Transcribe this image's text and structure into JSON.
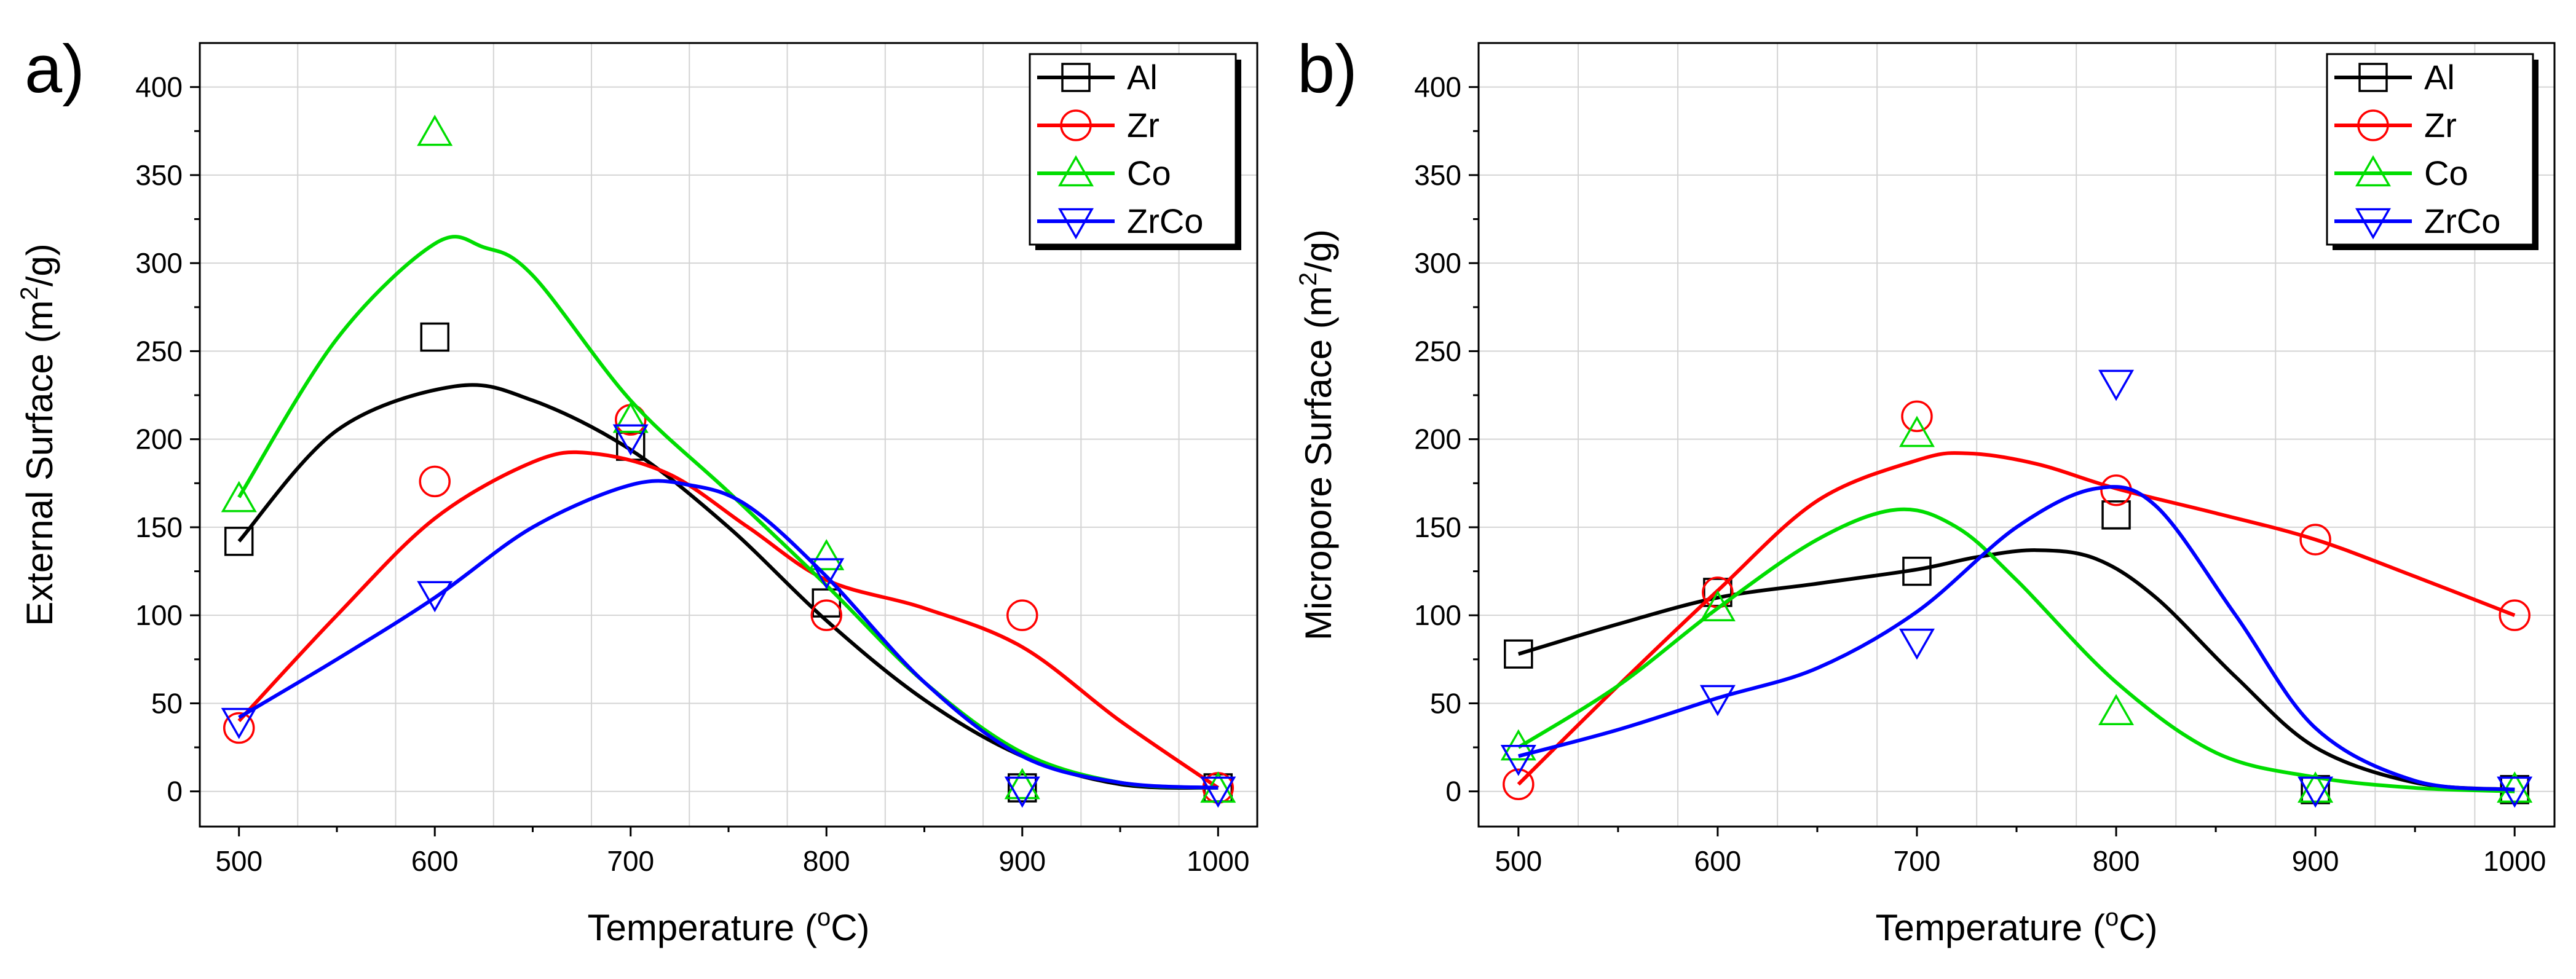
{
  "chart_data": [
    {
      "type": "line",
      "panel_label": "a)",
      "title": "",
      "xlabel_parts": {
        "main": "Temperature (",
        "superscript": "o",
        "end": "C)"
      },
      "ylabel_parts": {
        "main": "External Surface (m",
        "superscript": "2",
        "end": "/g)"
      },
      "xlim": [
        480,
        1020
      ],
      "ylim": [
        -20,
        425
      ],
      "x_ticks": [
        500,
        600,
        700,
        800,
        900,
        1000
      ],
      "y_ticks": [
        0,
        50,
        100,
        150,
        200,
        250,
        300,
        350,
        400
      ],
      "grid": true,
      "legend_position": "top-right",
      "series": [
        {
          "name": "Al",
          "color": "#000000",
          "marker": "square",
          "points": [
            [
              500,
              142
            ],
            [
              600,
              258
            ],
            [
              700,
              196
            ],
            [
              800,
              107
            ],
            [
              900,
              2
            ],
            [
              1000,
              2
            ]
          ],
          "curve": [
            [
              500,
              142
            ],
            [
              550,
              205
            ],
            [
              610,
              230
            ],
            [
              650,
              222
            ],
            [
              700,
              194
            ],
            [
              750,
              150
            ],
            [
              800,
              97
            ],
            [
              850,
              52
            ],
            [
              900,
              20
            ],
            [
              950,
              4
            ],
            [
              1000,
              2
            ]
          ]
        },
        {
          "name": "Zr",
          "color": "#ff0000",
          "marker": "circle",
          "points": [
            [
              500,
              36
            ],
            [
              600,
              176
            ],
            [
              700,
              211
            ],
            [
              800,
              100
            ],
            [
              900,
              100
            ],
            [
              1000,
              2
            ]
          ],
          "curve": [
            [
              500,
              40
            ],
            [
              550,
              100
            ],
            [
              600,
              155
            ],
            [
              650,
              187
            ],
            [
              680,
              192
            ],
            [
              720,
              180
            ],
            [
              760,
              150
            ],
            [
              800,
              120
            ],
            [
              850,
              104
            ],
            [
              900,
              82
            ],
            [
              950,
              40
            ],
            [
              1000,
              2
            ]
          ]
        },
        {
          "name": "Co",
          "color": "#00dd00",
          "marker": "triangle-up",
          "points": [
            [
              500,
              166
            ],
            [
              600,
              374
            ],
            [
              700,
              211
            ],
            [
              800,
              133
            ],
            [
              900,
              3
            ],
            [
              1000,
              1
            ]
          ],
          "curve": [
            [
              500,
              167
            ],
            [
              550,
              257
            ],
            [
              600,
              311
            ],
            [
              625,
              309
            ],
            [
              650,
              293
            ],
            [
              700,
              222
            ],
            [
              750,
              170
            ],
            [
              800,
              117
            ],
            [
              850,
              62
            ],
            [
              900,
              22
            ],
            [
              950,
              5
            ],
            [
              1000,
              2
            ]
          ]
        },
        {
          "name": "ZrCo",
          "color": "#0000ff",
          "marker": "triangle-down",
          "points": [
            [
              500,
              40
            ],
            [
              600,
              112
            ],
            [
              700,
              201
            ],
            [
              800,
              125
            ],
            [
              900,
              1
            ],
            [
              1000,
              1
            ]
          ],
          "curve": [
            [
              500,
              42
            ],
            [
              550,
              75
            ],
            [
              600,
              110
            ],
            [
              650,
              150
            ],
            [
              700,
              174
            ],
            [
              730,
              174
            ],
            [
              760,
              162
            ],
            [
              800,
              122
            ],
            [
              850,
              62
            ],
            [
              900,
              20
            ],
            [
              950,
              5
            ],
            [
              1000,
              2
            ]
          ]
        }
      ]
    },
    {
      "type": "line",
      "panel_label": "b)",
      "title": "",
      "xlabel_parts": {
        "main": "Temperature (",
        "superscript": "o",
        "end": "C)"
      },
      "ylabel_parts": {
        "main": "Micropore Surface (m",
        "superscript": "2",
        "end": "/g)"
      },
      "xlim": [
        480,
        1020
      ],
      "ylim": [
        -20,
        425
      ],
      "x_ticks": [
        500,
        600,
        700,
        800,
        900,
        1000
      ],
      "y_ticks": [
        0,
        50,
        100,
        150,
        200,
        250,
        300,
        350,
        400
      ],
      "grid": true,
      "legend_position": "top-right",
      "series": [
        {
          "name": "Al",
          "color": "#000000",
          "marker": "square",
          "points": [
            [
              500,
              78
            ],
            [
              600,
              113
            ],
            [
              700,
              125
            ],
            [
              800,
              157
            ],
            [
              900,
              1
            ],
            [
              1000,
              1
            ]
          ],
          "curve": [
            [
              500,
              78
            ],
            [
              550,
              95
            ],
            [
              600,
              110
            ],
            [
              650,
              118
            ],
            [
              700,
              126
            ],
            [
              730,
              133
            ],
            [
              760,
              137
            ],
            [
              790,
              132
            ],
            [
              820,
              110
            ],
            [
              860,
              65
            ],
            [
              900,
              25
            ],
            [
              950,
              5
            ],
            [
              1000,
              1
            ]
          ]
        },
        {
          "name": "Zr",
          "color": "#ff0000",
          "marker": "circle",
          "points": [
            [
              500,
              4
            ],
            [
              600,
              113
            ],
            [
              700,
              213
            ],
            [
              800,
              171
            ],
            [
              900,
              143
            ],
            [
              1000,
              100
            ]
          ],
          "curve": [
            [
              500,
              4
            ],
            [
              550,
              60
            ],
            [
              600,
              114
            ],
            [
              650,
              165
            ],
            [
              700,
              188
            ],
            [
              725,
              192
            ],
            [
              760,
              186
            ],
            [
              800,
              172
            ],
            [
              850,
              158
            ],
            [
              900,
              143
            ],
            [
              950,
              122
            ],
            [
              1000,
              100
            ]
          ]
        },
        {
          "name": "Co",
          "color": "#00dd00",
          "marker": "triangle-up",
          "points": [
            [
              500,
              25
            ],
            [
              600,
              104
            ],
            [
              700,
              203
            ],
            [
              800,
              45
            ],
            [
              900,
              1
            ],
            [
              1000,
              1
            ]
          ],
          "curve": [
            [
              500,
              25
            ],
            [
              550,
              60
            ],
            [
              600,
              104
            ],
            [
              650,
              143
            ],
            [
              690,
              160
            ],
            [
              720,
              150
            ],
            [
              750,
              120
            ],
            [
              800,
              62
            ],
            [
              850,
              22
            ],
            [
              900,
              8
            ],
            [
              950,
              2
            ],
            [
              1000,
              0
            ]
          ]
        },
        {
          "name": "ZrCo",
          "color": "#0000ff",
          "marker": "triangle-down",
          "points": [
            [
              500,
              19
            ],
            [
              600,
              53
            ],
            [
              700,
              85
            ],
            [
              800,
              232
            ],
            [
              900,
              1
            ],
            [
              1000,
              1
            ]
          ],
          "curve": [
            [
              500,
              20
            ],
            [
              550,
              35
            ],
            [
              600,
              53
            ],
            [
              650,
              70
            ],
            [
              700,
              102
            ],
            [
              750,
              150
            ],
            [
              790,
              172
            ],
            [
              820,
              162
            ],
            [
              860,
              100
            ],
            [
              900,
              36
            ],
            [
              950,
              6
            ],
            [
              1000,
              1
            ]
          ]
        }
      ]
    }
  ]
}
